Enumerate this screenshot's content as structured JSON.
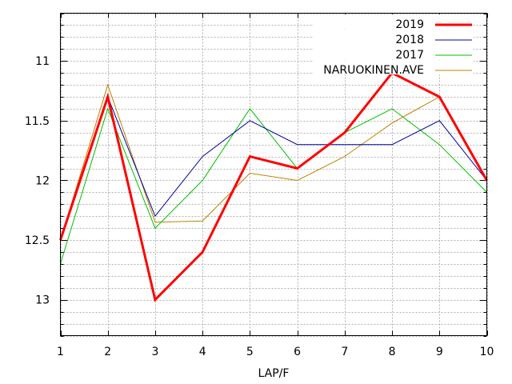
{
  "chart_data": {
    "type": "line",
    "title": "",
    "xlabel": "LAP/F",
    "ylabel": "",
    "y_reversed": true,
    "xlim": [
      1,
      10
    ],
    "ylim": [
      10.6,
      13.3
    ],
    "grid": true,
    "legend_position": "top-right",
    "x": [
      1,
      2,
      3,
      4,
      5,
      6,
      7,
      8,
      9,
      10
    ],
    "x_ticks": [
      "1",
      "2",
      "3",
      "4",
      "5",
      "6",
      "7",
      "8",
      "9",
      "10"
    ],
    "y_ticks": [
      {
        "value": 11,
        "label": "11"
      },
      {
        "value": 11.5,
        "label": "11.5"
      },
      {
        "value": 12,
        "label": "12"
      },
      {
        "value": 12.5,
        "label": "12.5"
      },
      {
        "value": 13,
        "label": "13"
      }
    ],
    "series": [
      {
        "name": "2019",
        "color": "#ff0000",
        "width": 3,
        "values": [
          12.5,
          11.3,
          13.0,
          12.6,
          11.8,
          11.9,
          11.6,
          11.1,
          11.3,
          12.0
        ]
      },
      {
        "name": "2018",
        "color": "#0000a0",
        "width": 1,
        "values": [
          12.5,
          11.3,
          12.3,
          11.8,
          11.5,
          11.7,
          11.7,
          11.7,
          11.5,
          12.0
        ]
      },
      {
        "name": "2017",
        "color": "#00c000",
        "width": 1,
        "values": [
          12.7,
          11.4,
          12.4,
          12.0,
          11.4,
          11.9,
          11.6,
          11.4,
          11.7,
          12.1
        ]
      },
      {
        "name": "NARUOKINEN.AVE",
        "color": "#c08000",
        "width": 1,
        "values": [
          12.5,
          11.2,
          12.35,
          12.34,
          11.94,
          12.0,
          11.8,
          11.52,
          11.3,
          12.0
        ]
      }
    ]
  }
}
